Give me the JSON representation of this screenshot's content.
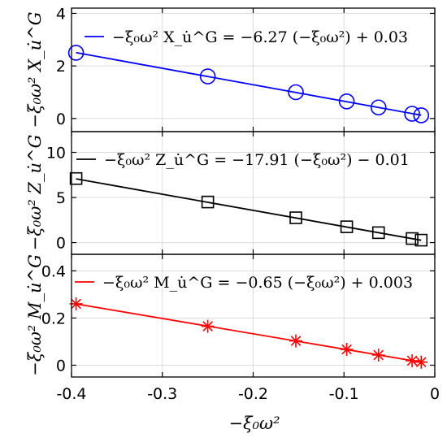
{
  "figure": {
    "xlabel": "−ξ₀ω²",
    "xlim": [
      -0.4,
      0
    ],
    "x_ticks": [
      -0.4,
      -0.3,
      -0.2,
      -0.1,
      0
    ],
    "x_tick_labels": [
      "-0.4",
      "-0.3",
      "-0.2",
      "-0.1",
      "0"
    ],
    "grid": true,
    "legend_position": "top-right"
  },
  "chart_data": [
    {
      "type": "scatter",
      "ylabel": "−ξ₀ω² X_u̇^G",
      "ylim": [
        -0.5,
        4.2
      ],
      "y_ticks": [
        0,
        2,
        4
      ],
      "y_tick_labels": [
        "0",
        "2",
        "4"
      ],
      "series": [
        {
          "name": "−ξ₀ω² X_u̇^G = −6.27 (−ξ₀ω²) + 0.03",
          "color": "#0000ff",
          "marker": "circle",
          "x": [
            -0.395,
            -0.25,
            -0.153,
            -0.097,
            -0.062,
            -0.025,
            -0.015
          ],
          "y": [
            2.5,
            1.6,
            1.0,
            0.65,
            0.42,
            0.18,
            0.12
          ],
          "fit": {
            "slope": -6.27,
            "intercept": 0.03
          }
        }
      ]
    },
    {
      "type": "scatter",
      "ylabel": "−ξ₀ω² Z_u̇^G",
      "ylim": [
        -1.3,
        12.3
      ],
      "y_ticks": [
        0,
        5,
        10
      ],
      "y_tick_labels": [
        "0",
        "5",
        "10"
      ],
      "series": [
        {
          "name": "−ξ₀ω² Z_u̇^G = −17.91 (−ξ₀ω²) − 0.01",
          "color": "#000000",
          "marker": "square",
          "x": [
            -0.395,
            -0.25,
            -0.153,
            -0.097,
            -0.062,
            -0.025,
            -0.015
          ],
          "y": [
            7.1,
            4.5,
            2.75,
            1.75,
            1.1,
            0.45,
            0.27
          ],
          "fit": {
            "slope": -17.91,
            "intercept": -0.01
          }
        }
      ]
    },
    {
      "type": "scatter",
      "ylabel": "−ξ₀ω² M_u̇^G",
      "ylim": [
        -0.05,
        0.47
      ],
      "y_ticks": [
        0,
        0.2,
        0.4
      ],
      "y_tick_labels": [
        "0",
        "0.2",
        "0.4"
      ],
      "series": [
        {
          "name": "−ξ₀ω² M_u̇^G = −0.65 (−ξ₀ω²) + 0.003",
          "color": "#ff0000",
          "marker": "asterisk",
          "x": [
            -0.395,
            -0.25,
            -0.153,
            -0.097,
            -0.062,
            -0.025,
            -0.015
          ],
          "y": [
            0.26,
            0.165,
            0.103,
            0.067,
            0.043,
            0.019,
            0.013
          ],
          "fit": {
            "slope": -0.65,
            "intercept": 0.003
          }
        }
      ]
    }
  ]
}
